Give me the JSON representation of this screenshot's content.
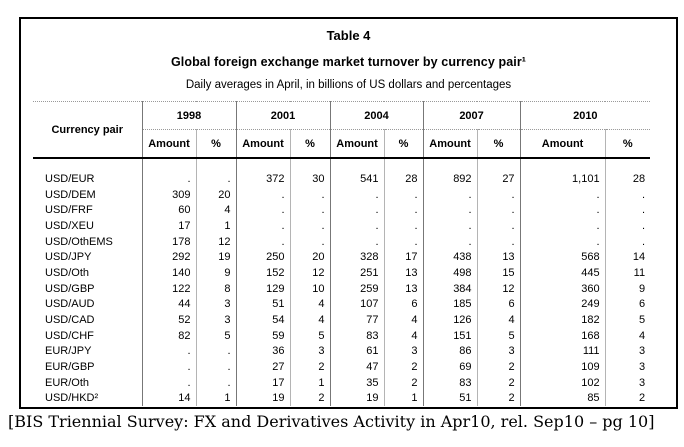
{
  "table": {
    "label": "Table 4",
    "title": "Global foreign exchange market turnover by currency pair¹",
    "subtitle": "Daily averages in April, in billions of US dollars and percentages",
    "row_header": "Currency pair",
    "years": [
      "1998",
      "2001",
      "2004",
      "2007",
      "2010"
    ],
    "col_amount": "Amount",
    "col_pct": "%",
    "rows": [
      {
        "pair": "USD/EUR",
        "values": [
          ".",
          ".",
          "372",
          "30",
          "541",
          "28",
          "892",
          "27",
          "1,101",
          "28"
        ]
      },
      {
        "pair": "USD/DEM",
        "values": [
          "309",
          "20",
          ".",
          ".",
          ".",
          ".",
          ".",
          ".",
          ".",
          "."
        ]
      },
      {
        "pair": "USD/FRF",
        "values": [
          "60",
          "4",
          ".",
          ".",
          ".",
          ".",
          ".",
          ".",
          ".",
          "."
        ]
      },
      {
        "pair": "USD/XEU",
        "values": [
          "17",
          "1",
          ".",
          ".",
          ".",
          ".",
          ".",
          ".",
          ".",
          "."
        ]
      },
      {
        "pair": "USD/OthEMS",
        "values": [
          "178",
          "12",
          ".",
          ".",
          ".",
          ".",
          ".",
          ".",
          ".",
          "."
        ]
      },
      {
        "pair": "USD/JPY",
        "values": [
          "292",
          "19",
          "250",
          "20",
          "328",
          "17",
          "438",
          "13",
          "568",
          "14"
        ]
      },
      {
        "pair": "USD/Oth",
        "values": [
          "140",
          "9",
          "152",
          "12",
          "251",
          "13",
          "498",
          "15",
          "445",
          "11"
        ]
      },
      {
        "pair": "USD/GBP",
        "values": [
          "122",
          "8",
          "129",
          "10",
          "259",
          "13",
          "384",
          "12",
          "360",
          "9"
        ]
      },
      {
        "pair": "USD/AUD",
        "values": [
          "44",
          "3",
          "51",
          "4",
          "107",
          "6",
          "185",
          "6",
          "249",
          "6"
        ]
      },
      {
        "pair": "USD/CAD",
        "values": [
          "52",
          "3",
          "54",
          "4",
          "77",
          "4",
          "126",
          "4",
          "182",
          "5"
        ]
      },
      {
        "pair": "USD/CHF",
        "values": [
          "82",
          "5",
          "59",
          "5",
          "83",
          "4",
          "151",
          "5",
          "168",
          "4"
        ]
      },
      {
        "pair": "EUR/JPY",
        "values": [
          ".",
          ".",
          "36",
          "3",
          "61",
          "3",
          "86",
          "3",
          "111",
          "3"
        ]
      },
      {
        "pair": "EUR/GBP",
        "values": [
          ".",
          ".",
          "27",
          "2",
          "47",
          "2",
          "69",
          "2",
          "109",
          "3"
        ]
      },
      {
        "pair": "EUR/Oth",
        "values": [
          ".",
          ".",
          "17",
          "1",
          "35",
          "2",
          "83",
          "2",
          "102",
          "3"
        ]
      },
      {
        "pair": "USD/HKD²",
        "values": [
          "14",
          "1",
          "19",
          "2",
          "19",
          "1",
          "51",
          "2",
          "85",
          "2"
        ]
      }
    ]
  },
  "caption": "[BIS Triennial Survey: FX and Derivatives Activity in Apr10, rel. Sep10 – pg 10]"
}
